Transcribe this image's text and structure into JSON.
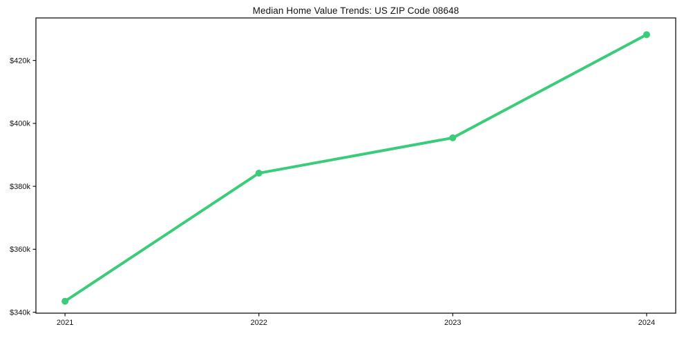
{
  "figure": {
    "background": "#ffffff"
  },
  "chart_data": {
    "type": "line",
    "title": "Median Home Value Trends: US ZIP Code 08648",
    "x": [
      2021,
      2022,
      2023,
      2024
    ],
    "x_tick_labels": [
      "2021",
      "2022",
      "2023",
      "2024"
    ],
    "values": [
      343500,
      384200,
      395400,
      428200
    ],
    "y_ticks": [
      340000,
      360000,
      380000,
      400000,
      420000
    ],
    "y_tick_labels": [
      "$340k",
      "$360k",
      "$380k",
      "$400k",
      "$420k"
    ],
    "xlim": [
      2020.85,
      2024.15
    ],
    "ylim": [
      339700,
      433500
    ],
    "grid": false,
    "legend": false,
    "line_color": "#3acc78",
    "marker_color": "#3acc78",
    "marker": "circle",
    "axis_color": "#111111",
    "text_color": "#111111"
  }
}
